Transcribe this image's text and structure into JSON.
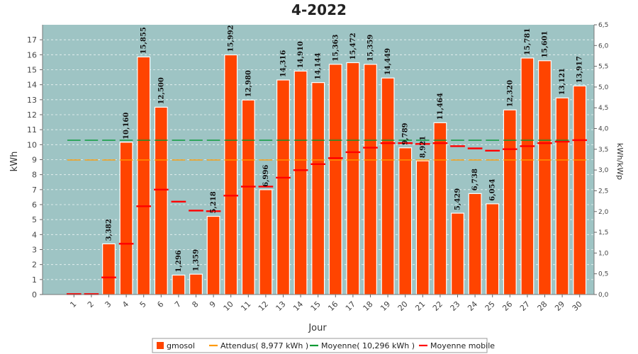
{
  "chart_data": {
    "type": "bar",
    "title": "4-2022",
    "xlabel": "Jour",
    "ylabel": "kWh",
    "ylabel_right": "kWh/kWp",
    "ylim": [
      0,
      18
    ],
    "ylim_right": [
      0,
      6.5
    ],
    "yticks": [
      0,
      1,
      2,
      3,
      4,
      5,
      6,
      7,
      8,
      9,
      10,
      11,
      12,
      13,
      14,
      15,
      16,
      17
    ],
    "yticks_right": [
      "0,0",
      "0,5",
      "1,0",
      "1,5",
      "2,0",
      "2,5",
      "3,0",
      "3,5",
      "4,0",
      "4,5",
      "5,0",
      "5,5",
      "6,0",
      "6,5"
    ],
    "categories": [
      "1",
      "2",
      "3",
      "4",
      "5",
      "6",
      "7",
      "8",
      "9",
      "10",
      "11",
      "12",
      "13",
      "14",
      "15",
      "16",
      "17",
      "18",
      "19",
      "20",
      "21",
      "22",
      "23",
      "24",
      "25",
      "26",
      "27",
      "28",
      "29",
      "30"
    ],
    "series": [
      {
        "name": "gmosol",
        "type": "bar",
        "color": "#ff4400",
        "values": [
          0.03,
          0.03,
          3.382,
          10.16,
          15.855,
          12.5,
          1.296,
          1.359,
          5.218,
          15.992,
          12.98,
          6.996,
          14.316,
          14.91,
          14.144,
          15.363,
          15.472,
          15.359,
          14.449,
          9.789,
          8.921,
          11.464,
          5.429,
          6.738,
          6.054,
          12.32,
          15.781,
          15.601,
          13.121,
          13.917
        ],
        "labels": [
          "",
          "",
          "3,382",
          "10,160",
          "15,855",
          "12,500",
          "1,296",
          "1,359",
          "5,218",
          "15,992",
          "12,980",
          "6,996",
          "14,316",
          "14,910",
          "14,144",
          "15,363",
          "15,472",
          "15,359",
          "14,449",
          "9,789",
          "8,921",
          "11,464",
          "5,429",
          "6,738",
          "6,054",
          "12,320",
          "15,781",
          "15,601",
          "13,121",
          "13,917"
        ]
      },
      {
        "name": "Attendus( 8,977 kWh )",
        "type": "line",
        "color": "#ff9900",
        "value": 8.977
      },
      {
        "name": "Moyenne( 10,296 kWh )",
        "type": "line",
        "color": "#009933",
        "value": 10.296
      },
      {
        "name": "Moyenne mobile",
        "type": "marker",
        "color": "#ff0000",
        "values": [
          0.03,
          0.03,
          1.14,
          3.39,
          5.89,
          7.0,
          6.2,
          5.6,
          5.56,
          6.6,
          7.2,
          7.2,
          7.8,
          8.3,
          8.7,
          9.1,
          9.5,
          9.8,
          10.1,
          10.1,
          10.05,
          10.1,
          9.9,
          9.75,
          9.6,
          9.7,
          9.9,
          10.1,
          10.2,
          10.3
        ]
      }
    ],
    "grid": true,
    "legend": "bottom"
  }
}
